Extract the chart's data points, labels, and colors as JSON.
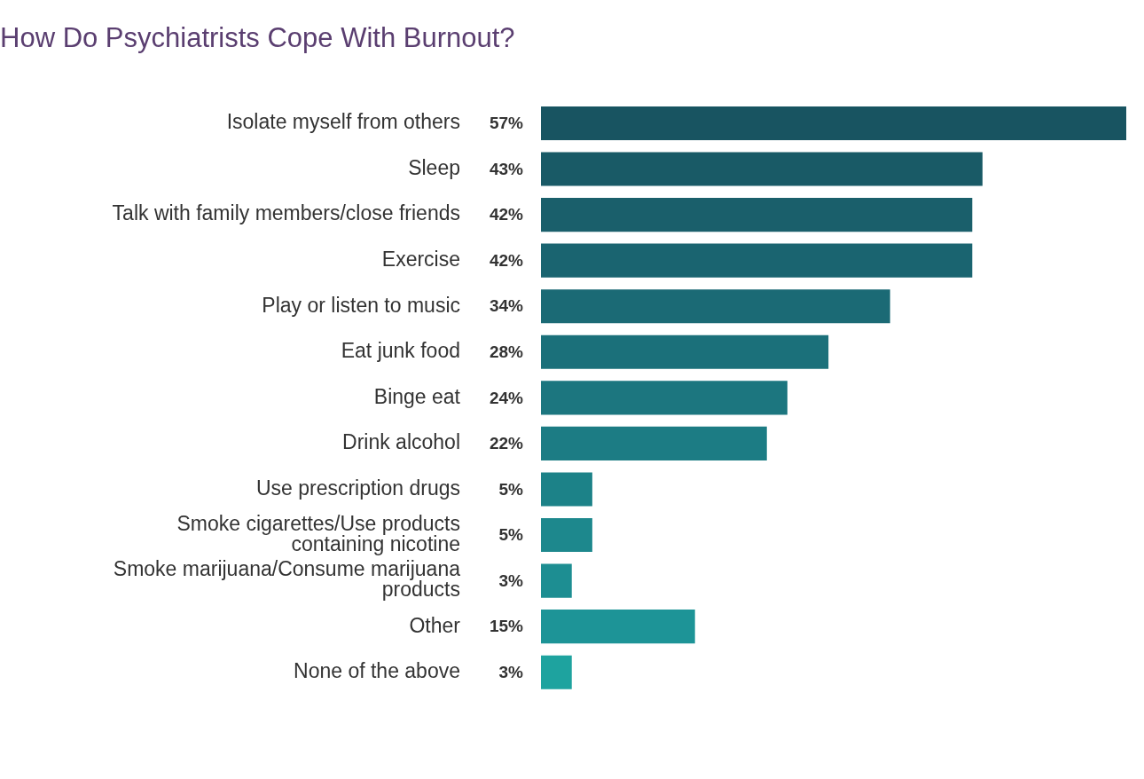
{
  "chart_data": {
    "type": "bar",
    "orientation": "horizontal",
    "title": "How Do Psychiatrists Cope With Burnout?",
    "categories": [
      "Isolate myself from others",
      "Sleep",
      "Talk with family members/close friends",
      "Exercise",
      "Play or listen to music",
      "Eat junk food",
      "Binge eat",
      "Drink alcohol",
      "Use prescription drugs",
      "Smoke cigarettes/Use products containing nicotine",
      "Smoke marijuana/Consume marijuana products",
      "Other",
      "None of the above"
    ],
    "values": [
      57,
      43,
      42,
      42,
      34,
      28,
      24,
      22,
      5,
      5,
      3,
      15,
      3
    ],
    "colors": [
      "#185461",
      "#195a66",
      "#1a5f6b",
      "#1a6470",
      "#1b6a75",
      "#1b707a",
      "#1c767f",
      "#1c7c84",
      "#1c8288",
      "#1d888d",
      "#1d8e92",
      "#1d9497",
      "#1ea39f"
    ],
    "value_labels": [
      "57%",
      "43%",
      "42%",
      "42%",
      "34%",
      "28%",
      "24%",
      "22%",
      "5%",
      "5%",
      "3%",
      "15%",
      "3%"
    ],
    "legend": false
  }
}
